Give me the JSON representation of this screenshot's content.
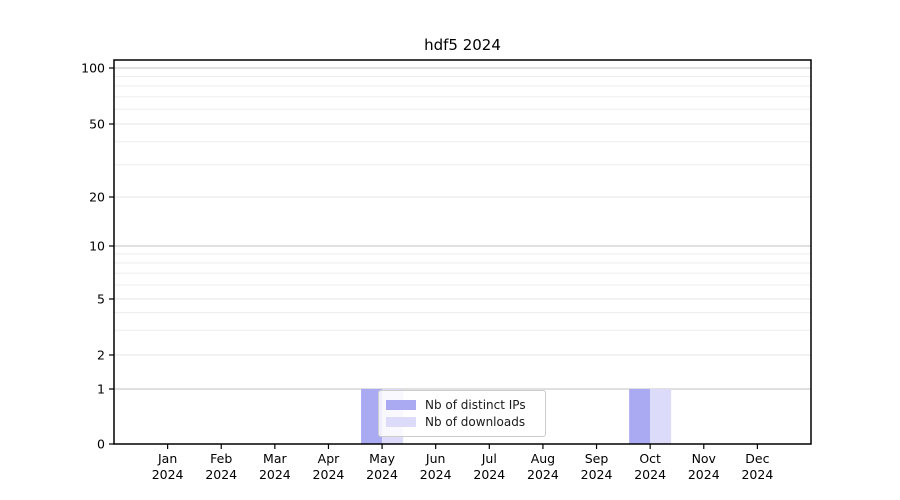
{
  "figure": {
    "title": "hdf5 2024"
  },
  "chart_data": {
    "type": "bar",
    "title": "hdf5 2024",
    "x_ticks": [
      {
        "month": "Jan",
        "year": "2024"
      },
      {
        "month": "Feb",
        "year": "2024"
      },
      {
        "month": "Mar",
        "year": "2024"
      },
      {
        "month": "Apr",
        "year": "2024"
      },
      {
        "month": "May",
        "year": "2024"
      },
      {
        "month": "Jun",
        "year": "2024"
      },
      {
        "month": "Jul",
        "year": "2024"
      },
      {
        "month": "Aug",
        "year": "2024"
      },
      {
        "month": "Sep",
        "year": "2024"
      },
      {
        "month": "Oct",
        "year": "2024"
      },
      {
        "month": "Nov",
        "year": "2024"
      },
      {
        "month": "Dec",
        "year": "2024"
      }
    ],
    "series": [
      {
        "name": "Nb of distinct IPs",
        "color": "#a9aaf2",
        "values": [
          0,
          0,
          0,
          0,
          1,
          0,
          0,
          0,
          0,
          1,
          0,
          0
        ]
      },
      {
        "name": "Nb of downloads",
        "color": "#dcdcfa",
        "values": [
          0,
          0,
          0,
          0,
          1,
          0,
          0,
          0,
          0,
          1,
          0,
          0
        ]
      }
    ],
    "y_axis": {
      "scale": "symlog",
      "ticks": [
        0,
        1,
        2,
        5,
        10,
        20,
        50,
        100
      ],
      "minor_ticks": [
        3,
        4,
        6,
        7,
        8,
        9,
        30,
        40,
        60,
        70,
        80,
        90
      ],
      "range": [
        0,
        110
      ]
    },
    "xlabel": "",
    "ylabel": "",
    "grid": "horizontal major and minor gridlines",
    "legend": {
      "position": "lower center inside plot",
      "entries": [
        "Nb of distinct IPs",
        "Nb of downloads"
      ]
    }
  },
  "colors": {
    "bar_distinct_ips": "#a9aaf2",
    "bar_downloads": "#dcdcfa",
    "grid_power10": "#c2c2c2",
    "grid_labeled": "#e6e6e6",
    "grid_minor": "#ededed",
    "axis_line": "#000000",
    "tick_label": "#000000",
    "background": "#ffffff"
  }
}
